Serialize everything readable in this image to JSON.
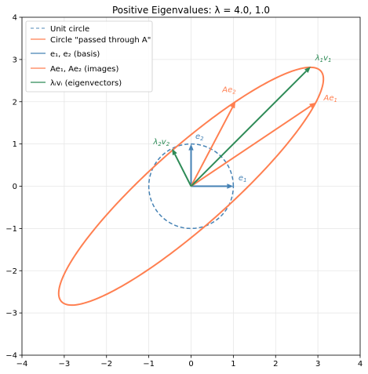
{
  "chart_data": {
    "type": "line",
    "title": "Positive Eigenvalues: λ = 4.0, 1.0",
    "xlabel": "",
    "ylabel": "",
    "xlim": [
      -4,
      4
    ],
    "ylim": [
      -4,
      4
    ],
    "xticks": [
      "−4",
      "−3",
      "−2",
      "−1",
      "0",
      "1",
      "2",
      "3",
      "4"
    ],
    "yticks": [
      "−4",
      "−3",
      "−2",
      "−1",
      "0",
      "1",
      "2",
      "3",
      "4"
    ],
    "grid": true,
    "legend_position": "top-left",
    "matrix_A": [
      [
        2.95,
        1.05
      ],
      [
        1.98,
        2.0
      ]
    ],
    "series": [
      {
        "name": "Unit circle",
        "kind": "circle",
        "radius": 1,
        "color": "#4682b4",
        "style": "dashed"
      },
      {
        "name": "Circle \"passed through A\"",
        "kind": "ellipse",
        "color": "#ff7f50",
        "style": "solid"
      },
      {
        "name": "e₁, e₂ (basis)",
        "kind": "arrows",
        "color": "#4682b4",
        "vectors": [
          [
            1,
            0
          ],
          [
            0,
            1
          ]
        ]
      },
      {
        "name": "Ae₁, Ae₂ (images)",
        "kind": "arrows",
        "color": "#ff7f50",
        "vectors": [
          [
            2.95,
            1.98
          ],
          [
            1.05,
            2.0
          ]
        ]
      },
      {
        "name": "λᵢvᵢ (eigenvectors)",
        "kind": "arrows",
        "color": "#2e8b57",
        "vectors": [
          [
            2.83,
            2.83
          ],
          [
            -0.45,
            0.89
          ]
        ]
      }
    ],
    "annotations": [
      {
        "text": "e",
        "sub": "1",
        "x": 1.22,
        "y": 0.14,
        "color": "#4682b4"
      },
      {
        "text": "e",
        "sub": "2",
        "x": 0.2,
        "y": 1.12,
        "color": "#4682b4"
      },
      {
        "text": "Ae",
        "sub": "1",
        "x": 3.3,
        "y": 2.03,
        "color": "#ff7f50"
      },
      {
        "text": "Ae",
        "sub": "2",
        "x": 0.9,
        "y": 2.23,
        "color": "#ff7f50"
      },
      {
        "text": "λ",
        "sub": "1",
        "tail": "v",
        "tail_sub": "1",
        "x": 3.13,
        "y": 2.98,
        "color": "#2e8b57"
      },
      {
        "text": "λ",
        "sub": "2",
        "tail": "v",
        "tail_sub": "2",
        "x": -0.7,
        "y": 0.99,
        "color": "#2e8b57"
      }
    ]
  }
}
